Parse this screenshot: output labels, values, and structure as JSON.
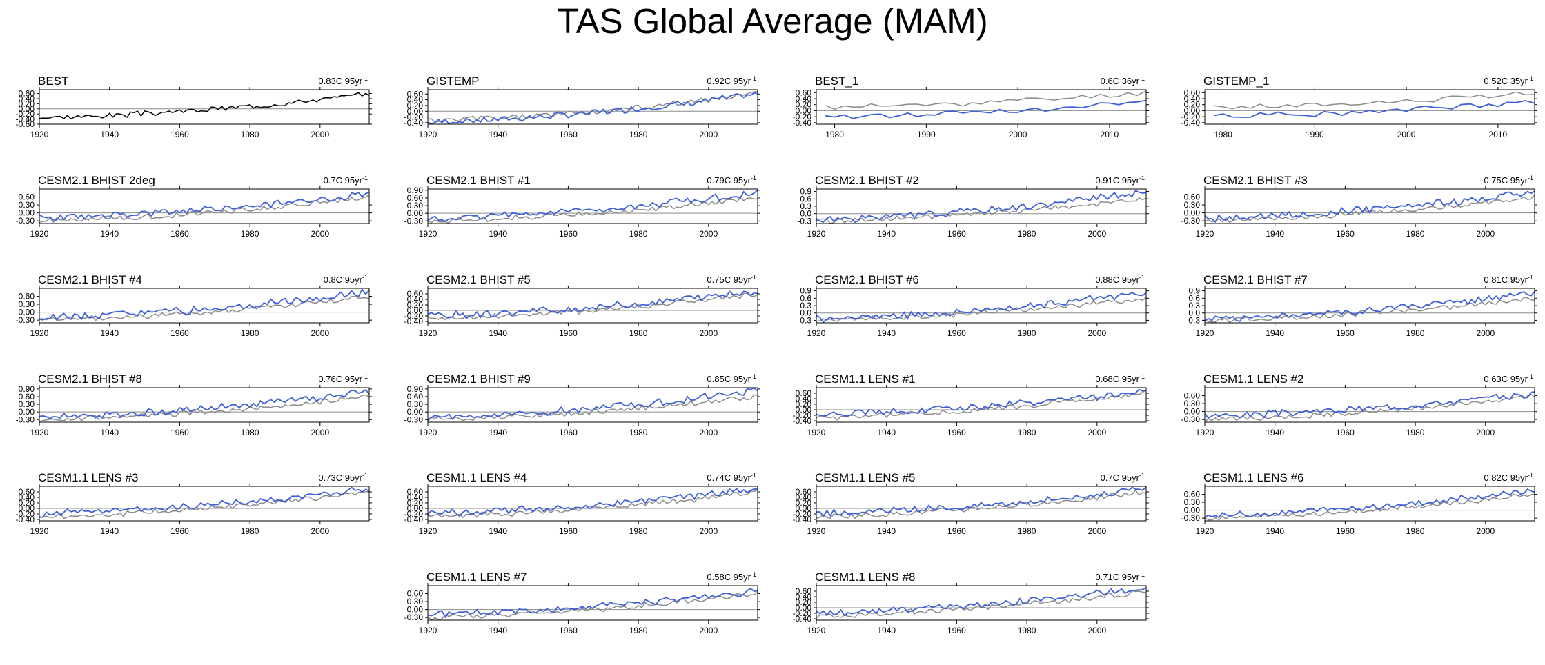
{
  "figure": {
    "title": "TAS Global Average (MAM)",
    "colors": {
      "model": "#3f60d8",
      "obs": "#8c8c8c",
      "obs_main": "#000000",
      "zero_line": "#8c8c8c"
    }
  },
  "chart_data": [
    {
      "type": "line",
      "title": "BEST",
      "trend": "0.83C 95yr",
      "xlim": [
        1920,
        2014
      ],
      "xticks": [
        1920,
        1940,
        1960,
        1980,
        2000
      ],
      "yticks": [
        "0.60",
        "0.40",
        "0.20",
        "0.00",
        "-0.20",
        "-0.40",
        "-0.60"
      ],
      "ylim": [
        -0.6,
        0.75
      ],
      "series": [
        {
          "role": "obs_main",
          "start": 1920,
          "end": 2014,
          "from": -0.35,
          "to": 0.58,
          "amp": 0.09,
          "seed": 3
        }
      ]
    },
    {
      "type": "line",
      "title": "GISTEMP",
      "trend": "0.92C 95yr",
      "xlim": [
        1920,
        2014
      ],
      "xticks": [
        1920,
        1940,
        1960,
        1980,
        2000
      ],
      "yticks": [
        "0.60",
        "0.40",
        "0.20",
        "0.00",
        "-0.20",
        "-0.40"
      ],
      "ylim": [
        -0.45,
        0.75
      ],
      "series": [
        {
          "role": "obs",
          "start": 1920,
          "end": 2014,
          "from": -0.33,
          "to": 0.62,
          "amp": 0.09,
          "seed": 5
        },
        {
          "role": "model",
          "start": 1920,
          "end": 2014,
          "from": -0.38,
          "to": 0.6,
          "amp": 0.1,
          "seed": 7
        }
      ]
    },
    {
      "type": "line",
      "title": "BEST_1",
      "trend": "0.6C 36yr",
      "xlim": [
        1978,
        2014
      ],
      "xticks": [
        1980,
        1990,
        2000,
        2010
      ],
      "yticks": [
        "0.60",
        "0.40",
        "0.20",
        "0.00",
        "-0.20",
        "-0.40"
      ],
      "ylim": [
        -0.45,
        0.7
      ],
      "series": [
        {
          "role": "obs",
          "start": 1979,
          "end": 2014,
          "from": 0.12,
          "to": 0.6,
          "amp": 0.08,
          "seed": 11
        },
        {
          "role": "model",
          "start": 1979,
          "end": 2014,
          "from": -0.2,
          "to": 0.3,
          "amp": 0.08,
          "seed": 13
        }
      ]
    },
    {
      "type": "line",
      "title": "GISTEMP_1",
      "trend": "0.52C 35yr",
      "xlim": [
        1978,
        2014
      ],
      "xticks": [
        1980,
        1990,
        2000,
        2010
      ],
      "yticks": [
        "0.60",
        "0.40",
        "0.20",
        "0.00",
        "-0.20",
        "-0.40"
      ],
      "ylim": [
        -0.45,
        0.7
      ],
      "series": [
        {
          "role": "obs",
          "start": 1979,
          "end": 2014,
          "from": 0.12,
          "to": 0.58,
          "amp": 0.08,
          "seed": 17
        },
        {
          "role": "model",
          "start": 1979,
          "end": 2014,
          "from": -0.18,
          "to": 0.3,
          "amp": 0.08,
          "seed": 19
        }
      ]
    },
    {
      "type": "line",
      "title": "CESM2.1 BHIST 2deg",
      "trend": "0.7C 95yr",
      "xlim": [
        1920,
        2014
      ],
      "xticks": [
        1920,
        1940,
        1960,
        1980,
        2000
      ],
      "yticks": [
        "0.60",
        "0.30",
        "0.00",
        "-0.30"
      ],
      "ylim": [
        -0.4,
        0.9
      ],
      "series": [
        {
          "role": "obs",
          "start": 1920,
          "end": 2014,
          "from": -0.3,
          "to": 0.6,
          "amp": 0.09,
          "seed": 21
        },
        {
          "role": "model",
          "start": 1920,
          "end": 2014,
          "from": -0.2,
          "to": 0.75,
          "amp": 0.12,
          "seed": 23
        }
      ]
    },
    {
      "type": "line",
      "title": "CESM2.1 BHIST #1",
      "trend": "0.79C 95yr",
      "xlim": [
        1920,
        2014
      ],
      "xticks": [
        1920,
        1940,
        1960,
        1980,
        2000
      ],
      "yticks": [
        "0.90",
        "0.60",
        "0.30",
        "0.00",
        "-0.30"
      ],
      "ylim": [
        -0.4,
        0.95
      ],
      "series": [
        {
          "role": "obs",
          "start": 1920,
          "end": 2014,
          "from": -0.3,
          "to": 0.6,
          "amp": 0.09,
          "seed": 25
        },
        {
          "role": "model",
          "start": 1920,
          "end": 2014,
          "from": -0.2,
          "to": 0.8,
          "amp": 0.12,
          "seed": 27
        }
      ]
    },
    {
      "type": "line",
      "title": "CESM2.1 BHIST #2",
      "trend": "0.91C 95yr",
      "xlim": [
        1920,
        2014
      ],
      "xticks": [
        1920,
        1940,
        1960,
        1980,
        2000
      ],
      "yticks": [
        "0.9",
        "0.6",
        "0.3",
        "0.0",
        "-0.3"
      ],
      "ylim": [
        -0.4,
        1.0
      ],
      "series": [
        {
          "role": "obs",
          "start": 1920,
          "end": 2014,
          "from": -0.3,
          "to": 0.6,
          "amp": 0.09,
          "seed": 29
        },
        {
          "role": "model",
          "start": 1920,
          "end": 2014,
          "from": -0.25,
          "to": 0.9,
          "amp": 0.13,
          "seed": 31
        }
      ]
    },
    {
      "type": "line",
      "title": "CESM2.1 BHIST #3",
      "trend": "0.75C 95yr",
      "xlim": [
        1920,
        2014
      ],
      "xticks": [
        1920,
        1940,
        1960,
        1980,
        2000
      ],
      "yticks": [
        "0.60",
        "0.30",
        "0.00",
        "-0.30"
      ],
      "ylim": [
        -0.4,
        0.9
      ],
      "series": [
        {
          "role": "obs",
          "start": 1920,
          "end": 2014,
          "from": -0.3,
          "to": 0.6,
          "amp": 0.09,
          "seed": 33
        },
        {
          "role": "model",
          "start": 1920,
          "end": 2014,
          "from": -0.2,
          "to": 0.78,
          "amp": 0.12,
          "seed": 35
        }
      ]
    },
    {
      "type": "line",
      "title": "CESM2.1 BHIST #4",
      "trend": "0.8C 95yr",
      "xlim": [
        1920,
        2014
      ],
      "xticks": [
        1920,
        1940,
        1960,
        1980,
        2000
      ],
      "yticks": [
        "0.60",
        "0.30",
        "0.00",
        "-0.30"
      ],
      "ylim": [
        -0.4,
        0.9
      ],
      "series": [
        {
          "role": "obs",
          "start": 1920,
          "end": 2014,
          "from": -0.3,
          "to": 0.6,
          "amp": 0.09,
          "seed": 37
        },
        {
          "role": "model",
          "start": 1920,
          "end": 2014,
          "from": -0.22,
          "to": 0.78,
          "amp": 0.12,
          "seed": 39
        }
      ]
    },
    {
      "type": "line",
      "title": "CESM2.1 BHIST #5",
      "trend": "0.75C 95yr",
      "xlim": [
        1920,
        2014
      ],
      "xticks": [
        1920,
        1940,
        1960,
        1980,
        2000
      ],
      "yticks": [
        "0.60",
        "0.40",
        "0.20",
        "0.00",
        "-0.20",
        "-0.40"
      ],
      "ylim": [
        -0.45,
        0.8
      ],
      "series": [
        {
          "role": "obs",
          "start": 1920,
          "end": 2014,
          "from": -0.3,
          "to": 0.6,
          "amp": 0.09,
          "seed": 41
        },
        {
          "role": "model",
          "start": 1920,
          "end": 2014,
          "from": -0.2,
          "to": 0.72,
          "amp": 0.12,
          "seed": 43
        }
      ]
    },
    {
      "type": "line",
      "title": "CESM2.1 BHIST #6",
      "trend": "0.88C 95yr",
      "xlim": [
        1920,
        2014
      ],
      "xticks": [
        1920,
        1940,
        1960,
        1980,
        2000
      ],
      "yticks": [
        "0.9",
        "0.6",
        "0.3",
        "0.0",
        "-0.3"
      ],
      "ylim": [
        -0.4,
        1.0
      ],
      "series": [
        {
          "role": "obs",
          "start": 1920,
          "end": 2014,
          "from": -0.3,
          "to": 0.6,
          "amp": 0.09,
          "seed": 45
        },
        {
          "role": "model",
          "start": 1920,
          "end": 2014,
          "from": -0.25,
          "to": 0.85,
          "amp": 0.12,
          "seed": 47
        }
      ]
    },
    {
      "type": "line",
      "title": "CESM2.1 BHIST #7",
      "trend": "0.81C 95yr",
      "xlim": [
        1920,
        2014
      ],
      "xticks": [
        1920,
        1940,
        1960,
        1980,
        2000
      ],
      "yticks": [
        "0.9",
        "0.6",
        "0.3",
        "0.0",
        "-0.3"
      ],
      "ylim": [
        -0.4,
        1.0
      ],
      "series": [
        {
          "role": "obs",
          "start": 1920,
          "end": 2014,
          "from": -0.3,
          "to": 0.6,
          "amp": 0.09,
          "seed": 49
        },
        {
          "role": "model",
          "start": 1920,
          "end": 2014,
          "from": -0.25,
          "to": 0.82,
          "amp": 0.12,
          "seed": 51
        }
      ]
    },
    {
      "type": "line",
      "title": "CESM2.1 BHIST #8",
      "trend": "0.76C 95yr",
      "xlim": [
        1920,
        2014
      ],
      "xticks": [
        1920,
        1940,
        1960,
        1980,
        2000
      ],
      "yticks": [
        "0.90",
        "0.60",
        "0.30",
        "0.00",
        "-0.30"
      ],
      "ylim": [
        -0.4,
        0.95
      ],
      "series": [
        {
          "role": "obs",
          "start": 1920,
          "end": 2014,
          "from": -0.3,
          "to": 0.6,
          "amp": 0.09,
          "seed": 53
        },
        {
          "role": "model",
          "start": 1920,
          "end": 2014,
          "from": -0.2,
          "to": 0.8,
          "amp": 0.12,
          "seed": 55
        }
      ]
    },
    {
      "type": "line",
      "title": "CESM2.1 BHIST #9",
      "trend": "0.85C 95yr",
      "xlim": [
        1920,
        2014
      ],
      "xticks": [
        1920,
        1940,
        1960,
        1980,
        2000
      ],
      "yticks": [
        "0.90",
        "0.60",
        "0.30",
        "0.00",
        "-0.30"
      ],
      "ylim": [
        -0.4,
        0.95
      ],
      "series": [
        {
          "role": "obs",
          "start": 1920,
          "end": 2014,
          "from": -0.3,
          "to": 0.6,
          "amp": 0.09,
          "seed": 57
        },
        {
          "role": "model",
          "start": 1920,
          "end": 2014,
          "from": -0.22,
          "to": 0.85,
          "amp": 0.12,
          "seed": 59
        }
      ]
    },
    {
      "type": "line",
      "title": "CESM1.1 LENS #1",
      "trend": "0.68C 95yr",
      "xlim": [
        1920,
        2014
      ],
      "xticks": [
        1920,
        1940,
        1960,
        1980,
        2000
      ],
      "yticks": [
        "0.60",
        "0.40",
        "0.20",
        "0.00",
        "-0.20",
        "-0.40"
      ],
      "ylim": [
        -0.45,
        0.8
      ],
      "series": [
        {
          "role": "obs",
          "start": 1920,
          "end": 2014,
          "from": -0.3,
          "to": 0.6,
          "amp": 0.09,
          "seed": 61
        },
        {
          "role": "model",
          "start": 1920,
          "end": 2014,
          "from": -0.15,
          "to": 0.65,
          "amp": 0.11,
          "seed": 63
        }
      ]
    },
    {
      "type": "line",
      "title": "CESM1.1 LENS #2",
      "trend": "0.63C 95yr",
      "xlim": [
        1920,
        2014
      ],
      "xticks": [
        1920,
        1940,
        1960,
        1980,
        2000
      ],
      "yticks": [
        "0.60",
        "0.30",
        "0.00",
        "-0.30"
      ],
      "ylim": [
        -0.4,
        0.9
      ],
      "series": [
        {
          "role": "obs",
          "start": 1920,
          "end": 2014,
          "from": -0.3,
          "to": 0.6,
          "amp": 0.09,
          "seed": 65
        },
        {
          "role": "model",
          "start": 1920,
          "end": 2014,
          "from": -0.15,
          "to": 0.68,
          "amp": 0.11,
          "seed": 67
        }
      ]
    },
    {
      "type": "line",
      "title": "CESM1.1 LENS #3",
      "trend": "0.73C 95yr",
      "xlim": [
        1920,
        2014
      ],
      "xticks": [
        1920,
        1940,
        1960,
        1980,
        2000
      ],
      "yticks": [
        "0.60",
        "0.40",
        "0.20",
        "0.00",
        "-0.20",
        "-0.40"
      ],
      "ylim": [
        -0.45,
        0.8
      ],
      "series": [
        {
          "role": "obs",
          "start": 1920,
          "end": 2014,
          "from": -0.3,
          "to": 0.6,
          "amp": 0.09,
          "seed": 69
        },
        {
          "role": "model",
          "start": 1920,
          "end": 2014,
          "from": -0.18,
          "to": 0.7,
          "amp": 0.11,
          "seed": 71
        }
      ]
    },
    {
      "type": "line",
      "title": "CESM1.1 LENS #4",
      "trend": "0.74C 95yr",
      "xlim": [
        1920,
        2014
      ],
      "xticks": [
        1920,
        1940,
        1960,
        1980,
        2000
      ],
      "yticks": [
        "0.60",
        "0.40",
        "0.20",
        "0.00",
        "-0.20",
        "-0.40"
      ],
      "ylim": [
        -0.45,
        0.8
      ],
      "series": [
        {
          "role": "obs",
          "start": 1920,
          "end": 2014,
          "from": -0.3,
          "to": 0.6,
          "amp": 0.09,
          "seed": 73
        },
        {
          "role": "model",
          "start": 1920,
          "end": 2014,
          "from": -0.18,
          "to": 0.7,
          "amp": 0.11,
          "seed": 75
        }
      ]
    },
    {
      "type": "line",
      "title": "CESM1.1 LENS #5",
      "trend": "0.7C 95yr",
      "xlim": [
        1920,
        2014
      ],
      "xticks": [
        1920,
        1940,
        1960,
        1980,
        2000
      ],
      "yticks": [
        "0.60",
        "0.40",
        "0.20",
        "0.00",
        "-0.20",
        "-0.40"
      ],
      "ylim": [
        -0.45,
        0.8
      ],
      "series": [
        {
          "role": "obs",
          "start": 1920,
          "end": 2014,
          "from": -0.3,
          "to": 0.6,
          "amp": 0.09,
          "seed": 77
        },
        {
          "role": "model",
          "start": 1920,
          "end": 2014,
          "from": -0.18,
          "to": 0.7,
          "amp": 0.11,
          "seed": 79
        }
      ]
    },
    {
      "type": "line",
      "title": "CESM1.1 LENS #6",
      "trend": "0.82C 95yr",
      "xlim": [
        1920,
        2014
      ],
      "xticks": [
        1920,
        1940,
        1960,
        1980,
        2000
      ],
      "yticks": [
        "0.60",
        "0.30",
        "0.00",
        "-0.30"
      ],
      "ylim": [
        -0.4,
        0.9
      ],
      "series": [
        {
          "role": "obs",
          "start": 1920,
          "end": 2014,
          "from": -0.3,
          "to": 0.6,
          "amp": 0.09,
          "seed": 81
        },
        {
          "role": "model",
          "start": 1920,
          "end": 2014,
          "from": -0.2,
          "to": 0.75,
          "amp": 0.11,
          "seed": 83
        }
      ]
    },
    {
      "type": "line",
      "title": "CESM1.1 LENS #7",
      "trend": "0.58C 95yr",
      "xlim": [
        1920,
        2014
      ],
      "xticks": [
        1920,
        1940,
        1960,
        1980,
        2000
      ],
      "yticks": [
        "0.60",
        "0.30",
        "0.00",
        "-0.30"
      ],
      "ylim": [
        -0.4,
        0.9
      ],
      "series": [
        {
          "role": "obs",
          "start": 1920,
          "end": 2014,
          "from": -0.3,
          "to": 0.6,
          "amp": 0.09,
          "seed": 85
        },
        {
          "role": "model",
          "start": 1920,
          "end": 2014,
          "from": -0.2,
          "to": 0.7,
          "amp": 0.11,
          "seed": 87
        }
      ]
    },
    {
      "type": "line",
      "title": "CESM1.1 LENS #8",
      "trend": "0.71C 95yr",
      "xlim": [
        1920,
        2014
      ],
      "xticks": [
        1920,
        1940,
        1960,
        1980,
        2000
      ],
      "yticks": [
        "0.60",
        "0.40",
        "0.20",
        "0.00",
        "-0.20",
        "-0.40"
      ],
      "ylim": [
        -0.45,
        0.8
      ],
      "series": [
        {
          "role": "obs",
          "start": 1920,
          "end": 2014,
          "from": -0.3,
          "to": 0.6,
          "amp": 0.09,
          "seed": 89
        },
        {
          "role": "model",
          "start": 1920,
          "end": 2014,
          "from": -0.2,
          "to": 0.72,
          "amp": 0.11,
          "seed": 91
        }
      ]
    }
  ]
}
